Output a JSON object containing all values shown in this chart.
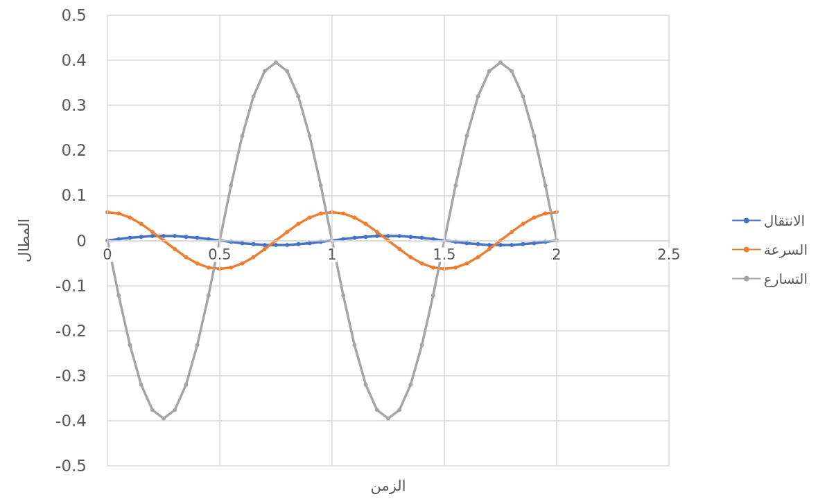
{
  "chart_data": {
    "type": "line",
    "xlabel": "الزمن",
    "ylabel": "المطال",
    "x": [
      0,
      0.05,
      0.1,
      0.15,
      0.2,
      0.25,
      0.3,
      0.35,
      0.4,
      0.45,
      0.5,
      0.55,
      0.6,
      0.65,
      0.7,
      0.75,
      0.8,
      0.85,
      0.9,
      0.95,
      1,
      1.05,
      1.1,
      1.15,
      1.2,
      1.25,
      1.3,
      1.35,
      1.4,
      1.45,
      1.5,
      1.55,
      1.6,
      1.65,
      1.7,
      1.75,
      1.8,
      1.85,
      1.9,
      1.95,
      2
    ],
    "series": [
      {
        "name": "الانتقال",
        "color": "#4472c4",
        "values": [
          0,
          0.003,
          0.006,
          0.008,
          0.01,
          0.01,
          0.01,
          0.008,
          0.006,
          0.003,
          0,
          -0.003,
          -0.006,
          -0.008,
          -0.01,
          -0.01,
          -0.01,
          -0.008,
          -0.006,
          -0.003,
          0,
          0.003,
          0.006,
          0.008,
          0.01,
          0.01,
          0.01,
          0.008,
          0.006,
          0.003,
          0,
          -0.003,
          -0.006,
          -0.008,
          -0.01,
          -0.01,
          -0.01,
          -0.008,
          -0.006,
          -0.003,
          0
        ]
      },
      {
        "name": "السرعة",
        "color": "#ed7d31",
        "values": [
          0.063,
          0.06,
          0.051,
          0.037,
          0.019,
          0,
          -0.019,
          -0.037,
          -0.051,
          -0.06,
          -0.063,
          -0.06,
          -0.051,
          -0.037,
          -0.019,
          0,
          0.019,
          0.037,
          0.051,
          0.06,
          0.063,
          0.06,
          0.051,
          0.037,
          0.019,
          0,
          -0.019,
          -0.037,
          -0.051,
          -0.06,
          -0.063,
          -0.06,
          -0.051,
          -0.037,
          -0.019,
          0,
          0.019,
          0.037,
          0.051,
          0.06,
          0.063
        ]
      },
      {
        "name": "التسارع",
        "color": "#a5a5a5",
        "values": [
          0,
          -0.122,
          -0.232,
          -0.32,
          -0.376,
          -0.395,
          -0.376,
          -0.32,
          -0.232,
          -0.122,
          0,
          0.122,
          0.232,
          0.32,
          0.376,
          0.395,
          0.376,
          0.32,
          0.232,
          0.122,
          0,
          -0.122,
          -0.232,
          -0.32,
          -0.376,
          -0.395,
          -0.376,
          -0.32,
          -0.232,
          -0.122,
          0,
          0.122,
          0.232,
          0.32,
          0.376,
          0.395,
          0.376,
          0.32,
          0.232,
          0.122,
          0
        ]
      }
    ],
    "xlim": [
      0,
      2.5
    ],
    "xticks": [
      0,
      0.5,
      1,
      1.5,
      2,
      2.5
    ],
    "ylim": [
      -0.5,
      0.5
    ],
    "yticks": [
      -0.5,
      -0.4,
      -0.3,
      -0.2,
      -0.1,
      0,
      0.1,
      0.2,
      0.3,
      0.4,
      0.5
    ],
    "grid": true,
    "legend": "right",
    "marker": "circle",
    "line_style": "solid"
  }
}
